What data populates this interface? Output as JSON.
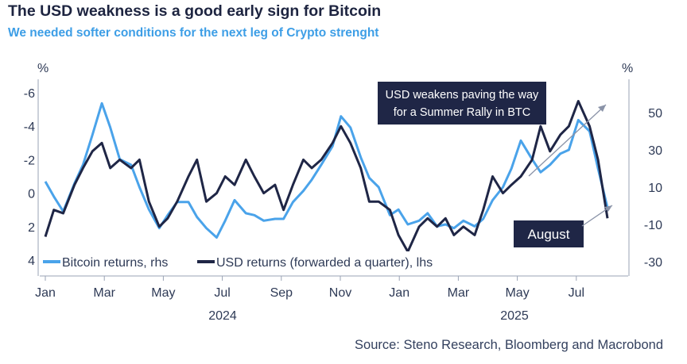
{
  "title": "The USD weakness is a good early sign for Bitcoin",
  "subtitle": "We needed softer conditions for the next leg of Crypto strenght",
  "source": "Source: Steno Research, Bloomberg and Macrobond",
  "colors": {
    "bitcoin": "#4aa3ea",
    "usd": "#1f2646",
    "title": "#1d2440",
    "subtitle": "#3d9ee6"
  },
  "chart_data": {
    "type": "line",
    "title": "The USD weakness is a good early sign for Bitcoin",
    "subtitle": "We needed softer conditions for the next leg of Crypto strenght",
    "xlabel": "",
    "left_axis": {
      "unit": "%",
      "ticks": [
        "-6",
        "-4",
        "-2",
        "0",
        "2",
        "4"
      ],
      "ylim": [
        -6,
        4
      ],
      "inverted": true
    },
    "right_axis": {
      "unit": "%",
      "ticks": [
        "50",
        "30",
        "10",
        "-10",
        "-30"
      ],
      "ylim": [
        -30,
        60
      ]
    },
    "x_ticks": [
      "Jan",
      "Mar",
      "May",
      "Jul",
      "Sep",
      "Nov",
      "Jan",
      "Mar",
      "May",
      "Jul"
    ],
    "x_years": [
      "2024",
      "2025"
    ],
    "legend": {
      "placement": "bottom-left"
    },
    "annotations": [
      {
        "text_lines": [
          "USD weakens paving the way",
          "for a Summer Rally in BTC"
        ]
      },
      {
        "text": "August"
      }
    ],
    "series": [
      {
        "name": "Bitcoin returns, rhs",
        "axis": "right",
        "x": [
          "2024-01-01",
          "2024-01-10",
          "2024-01-20",
          "2024-02-01",
          "2024-02-10",
          "2024-02-20",
          "2024-03-01",
          "2024-03-10",
          "2024-03-20",
          "2024-04-01",
          "2024-04-10",
          "2024-04-20",
          "2024-05-01",
          "2024-05-10",
          "2024-05-20",
          "2024-06-01",
          "2024-06-10",
          "2024-06-20",
          "2024-07-01",
          "2024-07-10",
          "2024-07-20",
          "2024-08-01",
          "2024-08-10",
          "2024-08-20",
          "2024-09-01",
          "2024-09-10",
          "2024-09-20",
          "2024-10-01",
          "2024-10-10",
          "2024-10-20",
          "2024-11-01",
          "2024-11-10",
          "2024-11-20",
          "2024-12-01",
          "2024-12-10",
          "2024-12-20",
          "2025-01-01",
          "2025-01-10",
          "2025-01-20",
          "2025-02-01",
          "2025-02-10",
          "2025-02-20",
          "2025-03-01",
          "2025-03-10",
          "2025-03-20",
          "2025-04-01",
          "2025-04-10",
          "2025-04-20",
          "2025-05-01",
          "2025-05-10",
          "2025-05-20",
          "2025-06-01",
          "2025-06-10",
          "2025-06-20",
          "2025-07-01",
          "2025-07-10",
          "2025-07-20",
          "2025-08-01",
          "2025-08-10",
          "2025-08-20"
        ],
        "y": [
          13,
          5,
          -3,
          12,
          22,
          38,
          55,
          42,
          25,
          22,
          10,
          -2,
          -12,
          -5,
          2,
          2,
          -6,
          -12,
          -17,
          -8,
          3,
          -4,
          -5,
          -8,
          -7,
          -7,
          2,
          8,
          14,
          22,
          32,
          48,
          42,
          26,
          15,
          10,
          -5,
          -2,
          -10,
          -8,
          -4,
          -11,
          -10,
          -12,
          -8,
          -11,
          -7,
          3,
          10,
          20,
          35,
          25,
          18,
          22,
          28,
          30,
          46,
          40,
          20,
          -1
        ]
      },
      {
        "name": "USD returns (forwarded a quarter), lhs",
        "axis": "left",
        "x": [
          "2024-01-01",
          "2024-01-10",
          "2024-01-20",
          "2024-02-01",
          "2024-02-10",
          "2024-02-20",
          "2024-03-01",
          "2024-03-10",
          "2024-03-20",
          "2024-04-01",
          "2024-04-10",
          "2024-04-20",
          "2024-05-01",
          "2024-05-10",
          "2024-05-20",
          "2024-06-01",
          "2024-06-10",
          "2024-06-20",
          "2024-07-01",
          "2024-07-10",
          "2024-07-20",
          "2024-08-01",
          "2024-08-10",
          "2024-08-20",
          "2024-09-01",
          "2024-09-10",
          "2024-09-20",
          "2024-10-01",
          "2024-10-10",
          "2024-10-20",
          "2024-11-01",
          "2024-11-10",
          "2024-11-20",
          "2024-12-01",
          "2024-12-10",
          "2024-12-20",
          "2025-01-01",
          "2025-01-10",
          "2025-01-20",
          "2025-02-01",
          "2025-02-10",
          "2025-02-20",
          "2025-03-01",
          "2025-03-10",
          "2025-03-20",
          "2025-04-01",
          "2025-04-10",
          "2025-04-20",
          "2025-05-01",
          "2025-05-10",
          "2025-05-20",
          "2025-06-01",
          "2025-06-10",
          "2025-06-20",
          "2025-07-01",
          "2025-07-10",
          "2025-07-20",
          "2025-08-01",
          "2025-08-10",
          "2025-08-20"
        ],
        "y": [
          2.6,
          1.0,
          1.2,
          -0.5,
          -1.5,
          -2.5,
          -3.0,
          -1.5,
          -2.0,
          -1.5,
          -2.0,
          0.5,
          2.0,
          1.5,
          0.5,
          -1.0,
          -2.0,
          0.5,
          0.0,
          -1.0,
          -0.5,
          -2.0,
          -1.0,
          0.0,
          -0.5,
          1.0,
          -0.5,
          -2.0,
          -1.5,
          -2.0,
          -3.0,
          -4.0,
          -3.0,
          -1.5,
          0.5,
          0.5,
          1.0,
          2.5,
          3.5,
          2.0,
          1.5,
          2.0,
          1.5,
          2.5,
          2.0,
          2.5,
          1.0,
          -1.0,
          0.0,
          -0.5,
          -1.0,
          -2.0,
          -4.0,
          -2.5,
          -3.5,
          -4.0,
          -5.5,
          -4.0,
          -2.0,
          1.5
        ]
      }
    ]
  }
}
